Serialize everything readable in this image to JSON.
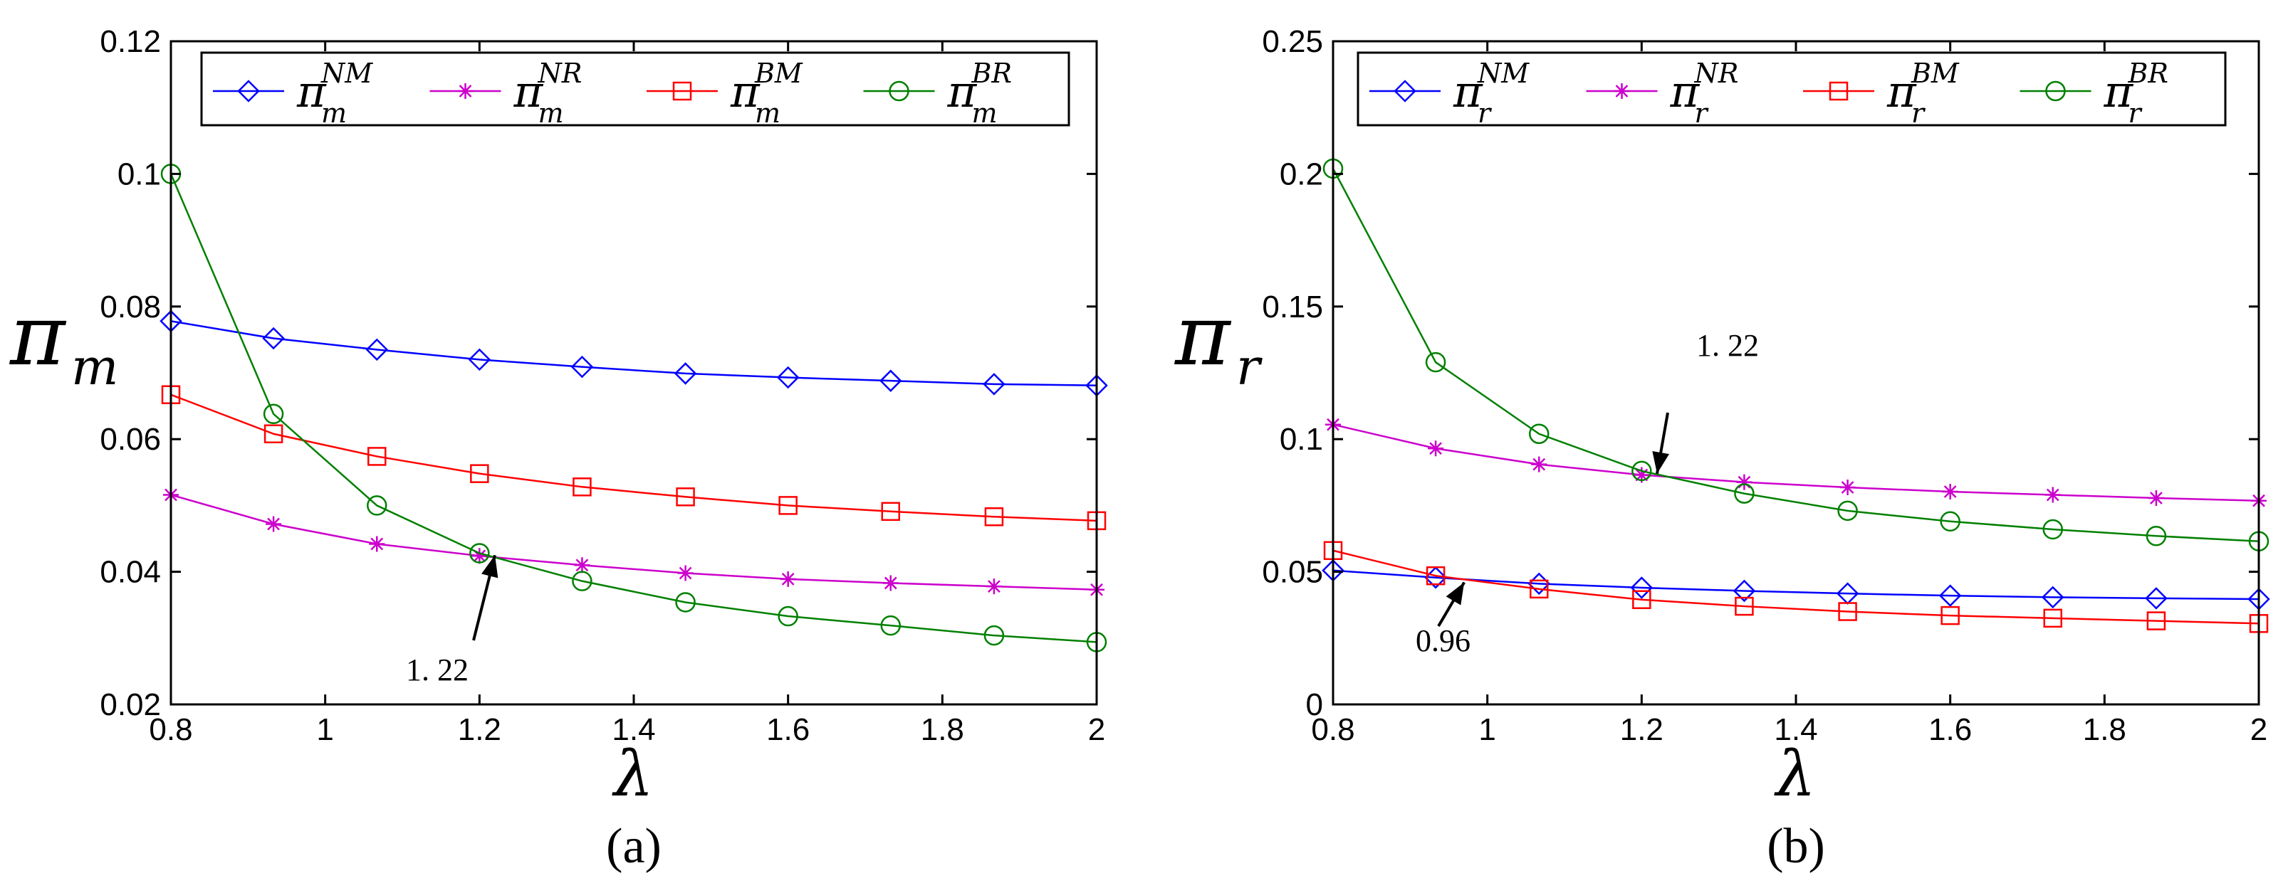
{
  "chart_data": [
    {
      "type": "line",
      "caption": "(a)",
      "xlabel": "λ",
      "ylabel": "π",
      "ylabel_sub": "m",
      "xlim": [
        0.8,
        2.0
      ],
      "ylim": [
        0.02,
        0.12
      ],
      "x_ticks": [
        "0.8",
        "1",
        "1.2",
        "1.4",
        "1.6",
        "1.8",
        "2"
      ],
      "y_ticks": [
        "0.02",
        "0.04",
        "0.06",
        "0.08",
        "0.1",
        "0.12"
      ],
      "x": [
        0.8,
        0.933,
        1.067,
        1.2,
        1.333,
        1.467,
        1.6,
        1.733,
        1.867,
        2.0
      ],
      "series": [
        {
          "name": "π",
          "sub": "m",
          "sup": "NM",
          "color": "#0000ff",
          "marker": "diamond",
          "values": [
            0.0778,
            0.0752,
            0.0735,
            0.072,
            0.0709,
            0.0699,
            0.0693,
            0.0688,
            0.0683,
            0.0681
          ]
        },
        {
          "name": "π",
          "sub": "m",
          "sup": "NR",
          "color": "#cc00cc",
          "marker": "star",
          "values": [
            0.0516,
            0.0472,
            0.0442,
            0.0424,
            0.041,
            0.0398,
            0.0389,
            0.0383,
            0.0378,
            0.0373
          ]
        },
        {
          "name": "π",
          "sub": "m",
          "sup": "BM",
          "color": "#ff0000",
          "marker": "square",
          "values": [
            0.0667,
            0.0608,
            0.0574,
            0.0548,
            0.0528,
            0.0513,
            0.05,
            0.0491,
            0.0483,
            0.0477
          ]
        },
        {
          "name": "π",
          "sub": "m",
          "sup": "BR",
          "color": "#008000",
          "marker": "circle",
          "values": [
            0.1,
            0.0638,
            0.05,
            0.0428,
            0.0386,
            0.0354,
            0.0333,
            0.0319,
            0.0304,
            0.0294
          ]
        }
      ],
      "annotation": {
        "text": "1. 22",
        "x": 1.22,
        "y": 0.0425
      }
    },
    {
      "type": "line",
      "caption": "(b)",
      "xlabel": "λ",
      "ylabel": "π",
      "ylabel_sub": "r",
      "xlim": [
        0.8,
        2.0
      ],
      "ylim": [
        0,
        0.25
      ],
      "x_ticks": [
        "0.8",
        "1",
        "1.2",
        "1.4",
        "1.6",
        "1.8",
        "2"
      ],
      "y_ticks": [
        "0",
        "0.05",
        "0.1",
        "0.15",
        "0.2",
        "0.25"
      ],
      "x": [
        0.8,
        0.933,
        1.067,
        1.2,
        1.333,
        1.467,
        1.6,
        1.733,
        1.867,
        2.0
      ],
      "series": [
        {
          "name": "π",
          "sub": "r",
          "sup": "NM",
          "color": "#0000ff",
          "marker": "diamond",
          "values": [
            0.0505,
            0.0478,
            0.0455,
            0.044,
            0.0428,
            0.0418,
            0.041,
            0.0404,
            0.04,
            0.0397
          ]
        },
        {
          "name": "π",
          "sub": "r",
          "sup": "NR",
          "color": "#cc00cc",
          "marker": "star",
          "values": [
            0.1055,
            0.0965,
            0.0905,
            0.0865,
            0.0838,
            0.0818,
            0.0802,
            0.079,
            0.0778,
            0.0768
          ]
        },
        {
          "name": "π",
          "sub": "r",
          "sup": "BM",
          "color": "#ff0000",
          "marker": "square",
          "values": [
            0.058,
            0.0485,
            0.0435,
            0.0395,
            0.037,
            0.035,
            0.0335,
            0.0325,
            0.0315,
            0.0305
          ]
        },
        {
          "name": "π",
          "sub": "r",
          "sup": "BR",
          "color": "#008000",
          "marker": "circle",
          "values": [
            0.202,
            0.129,
            0.102,
            0.088,
            0.0795,
            0.073,
            0.069,
            0.066,
            0.0635,
            0.0615
          ]
        }
      ],
      "annotations": [
        {
          "text": "1. 22",
          "x": 1.22,
          "y": 0.087
        },
        {
          "text": "0.96",
          "x": 0.97,
          "y": 0.046
        }
      ]
    }
  ]
}
